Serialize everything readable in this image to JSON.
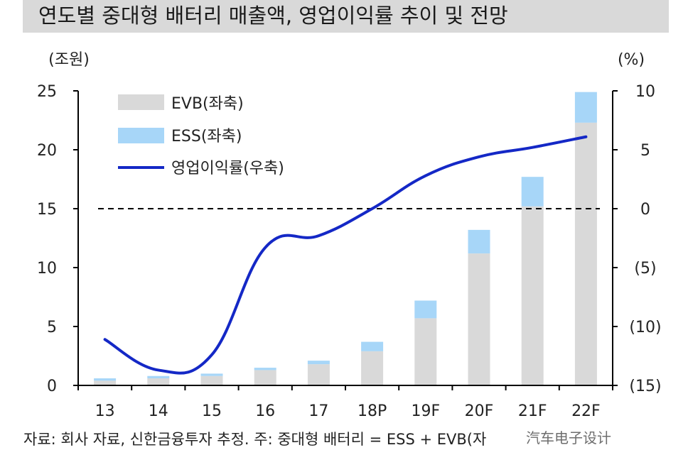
{
  "title": "연도별 중대형 배터리 매출액, 영업이익률 추이 및 전망",
  "source_note": "자료: 회사 자료, 신한금융투자 추정. 주: 중대형 배터리 = ESS + EVB(자",
  "watermark": "汽车电子设计",
  "colors": {
    "evb": "#d9d9d9",
    "ess": "#a7d6f8",
    "margin_line": "#1428c6",
    "zero_line": "#000000"
  },
  "chart_data": {
    "type": "bar",
    "categories": [
      "13",
      "14",
      "15",
      "16",
      "17",
      "18P",
      "19F",
      "20F",
      "21F",
      "22F"
    ],
    "series": [
      {
        "name": "EVB(좌축)",
        "type": "stacked-bar",
        "axis": "left",
        "values": [
          0.4,
          0.6,
          0.8,
          1.3,
          1.8,
          2.9,
          5.7,
          11.2,
          15.2,
          22.3
        ]
      },
      {
        "name": "ESS(좌축)",
        "type": "stacked-bar",
        "axis": "left",
        "values": [
          0.2,
          0.2,
          0.2,
          0.2,
          0.3,
          0.8,
          1.5,
          2.0,
          2.5,
          2.6
        ]
      },
      {
        "name": "영업이익률(우축)",
        "type": "line",
        "axis": "right",
        "values": [
          -11.1,
          -13.7,
          -12.4,
          -3.3,
          -2.3,
          0.0,
          2.8,
          4.4,
          5.2,
          6.1
        ]
      }
    ],
    "left_axis": {
      "label": "(조원)",
      "ylim": [
        0,
        25
      ],
      "ticks": [
        "0",
        "5",
        "10",
        "15",
        "20",
        "25"
      ]
    },
    "right_axis": {
      "label": "(%)",
      "ylim": [
        -15,
        10
      ],
      "ticks": [
        "(15)",
        "(10)",
        "(5)",
        "0",
        "5",
        "10"
      ]
    },
    "reference_line": {
      "axis": "right",
      "value": 0,
      "style": "dashed"
    },
    "legend_position": "top-left",
    "grid": false
  }
}
